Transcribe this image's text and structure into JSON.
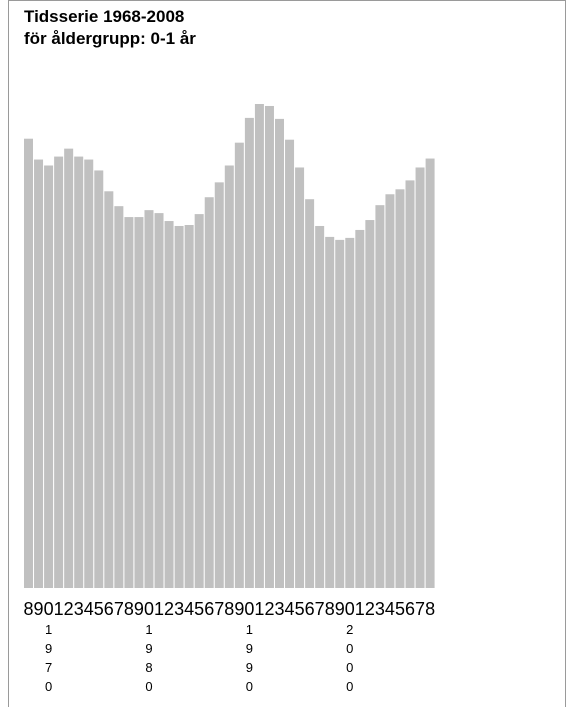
{
  "chart_data": {
    "type": "bar",
    "title": "Tidsserie 1968-2008",
    "subtitle": "för åldergrupp: 0-1 år",
    "categories": [
      "1968",
      "1969",
      "1970",
      "1971",
      "1972",
      "1973",
      "1974",
      "1975",
      "1976",
      "1977",
      "1978",
      "1979",
      "1980",
      "1981",
      "1982",
      "1983",
      "1984",
      "1985",
      "1986",
      "1987",
      "1988",
      "1989",
      "1990",
      "1991",
      "1992",
      "1993",
      "1994",
      "1995",
      "1996",
      "1997",
      "1998",
      "1999",
      "2000",
      "2001",
      "2002",
      "2003",
      "2004",
      "2005",
      "2006",
      "2007",
      "2008"
    ],
    "tick_labels": [
      "8",
      "9",
      "0",
      "1",
      "2",
      "3",
      "4",
      "5",
      "6",
      "7",
      "8",
      "9",
      "0",
      "1",
      "2",
      "3",
      "4",
      "5",
      "6",
      "7",
      "8",
      "9",
      "0",
      "1",
      "2",
      "3",
      "4",
      "5",
      "6",
      "7",
      "8",
      "9",
      "0",
      "1",
      "2",
      "3",
      "4",
      "5",
      "6",
      "7",
      "8"
    ],
    "decade_labels": [
      {
        "year": "1970",
        "digits": [
          "1",
          "9",
          "7",
          "0"
        ]
      },
      {
        "year": "1980",
        "digits": [
          "1",
          "9",
          "8",
          "0"
        ]
      },
      {
        "year": "1990",
        "digits": [
          "1",
          "9",
          "9",
          "0"
        ]
      },
      {
        "year": "2000",
        "digits": [
          "2",
          "0",
          "0",
          "0"
        ]
      }
    ],
    "values": [
      453,
      432,
      426,
      435,
      443,
      435,
      432,
      421,
      400,
      385,
      374,
      374,
      381,
      378,
      370,
      365,
      366,
      377,
      394,
      409,
      426,
      449,
      474,
      488,
      486,
      473,
      452,
      424,
      392,
      365,
      354,
      351,
      353,
      361,
      371,
      386,
      397,
      402,
      411,
      424,
      433
    ],
    "ylim": [
      0,
      488
    ],
    "bar_color": "#c0c0c0",
    "grid": false,
    "legend": "none"
  }
}
